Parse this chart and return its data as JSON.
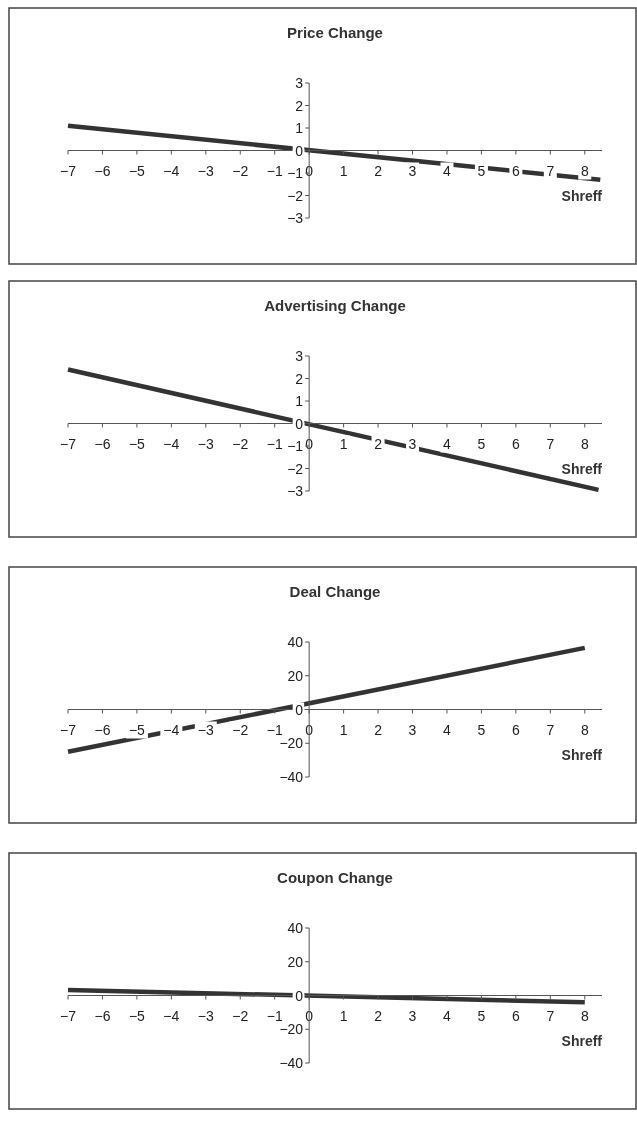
{
  "chart_data": [
    {
      "type": "line",
      "title": "Price Change",
      "xlabel": "Shreff",
      "xlim": [
        -7,
        8.5
      ],
      "ylim": [
        -3,
        3
      ],
      "xticks": [
        -7,
        -6,
        -5,
        -4,
        -3,
        -2,
        -1,
        0,
        1,
        2,
        3,
        4,
        5,
        6,
        7,
        8
      ],
      "yticks": [
        -3,
        -2,
        -1,
        0,
        1,
        2,
        3
      ],
      "grid": false,
      "series": [
        {
          "color": "#333333",
          "x": [
            -7,
            8.45
          ],
          "values": [
            1.1,
            -1.3
          ]
        }
      ]
    },
    {
      "type": "line",
      "title": "Advertising Change",
      "xlabel": "Shreff",
      "xlim": [
        -7,
        8.5
      ],
      "ylim": [
        -3,
        3
      ],
      "xticks": [
        -7,
        -6,
        -5,
        -4,
        -3,
        -2,
        -1,
        0,
        1,
        2,
        3,
        4,
        5,
        6,
        7,
        8
      ],
      "yticks": [
        -3,
        -2,
        -1,
        0,
        1,
        2,
        3
      ],
      "grid": false,
      "series": [
        {
          "color": "#333333",
          "x": [
            -7,
            8.4
          ],
          "values": [
            2.4,
            -2.95
          ]
        }
      ]
    },
    {
      "type": "line",
      "title": "Deal Change",
      "xlabel": "Shreff",
      "xlim": [
        -7,
        8.5
      ],
      "ylim": [
        -40,
        40
      ],
      "xticks": [
        -7,
        -6,
        -5,
        -4,
        -3,
        -2,
        -1,
        0,
        1,
        2,
        3,
        4,
        5,
        6,
        7,
        8
      ],
      "yticks": [
        -40,
        -20,
        0,
        20,
        40
      ],
      "grid": false,
      "series": [
        {
          "color": "#333333",
          "x": [
            -7,
            8
          ],
          "values": [
            -25,
            36.5
          ]
        }
      ]
    },
    {
      "type": "line",
      "title": "Coupon Change",
      "xlabel": "Shreff",
      "xlim": [
        -7,
        8.5
      ],
      "ylim": [
        -40,
        40
      ],
      "xticks": [
        -7,
        -6,
        -5,
        -4,
        -3,
        -2,
        -1,
        0,
        1,
        2,
        3,
        4,
        5,
        6,
        7,
        8
      ],
      "yticks": [
        -40,
        -20,
        0,
        20,
        40
      ],
      "grid": false,
      "series": [
        {
          "color": "#333333",
          "x": [
            -7,
            8
          ],
          "values": [
            3.3,
            -4
          ]
        }
      ]
    }
  ]
}
